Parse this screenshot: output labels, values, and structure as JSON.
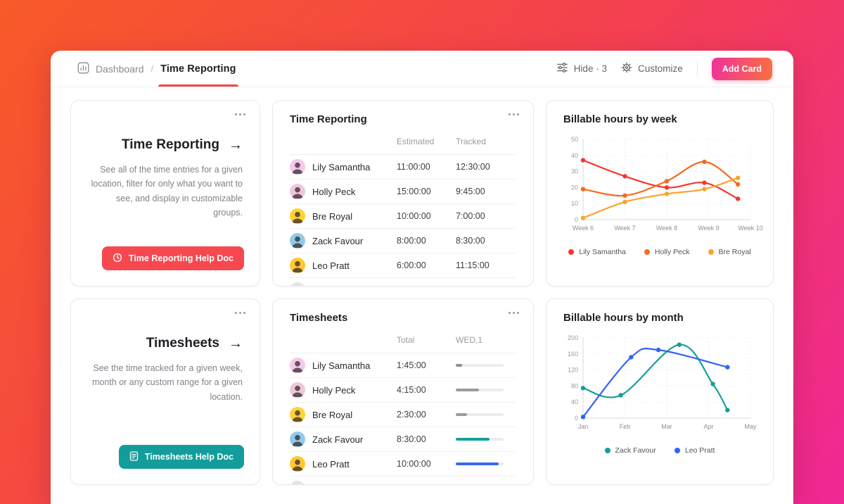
{
  "header": {
    "breadcrumb": {
      "root": "Dashboard",
      "separator": "/",
      "current": "Time Reporting"
    },
    "hide_label": "Hide · 3",
    "customize_label": "Customize",
    "add_card_label": "Add Card"
  },
  "info_cards": [
    {
      "title": "Time Reporting",
      "arrow": "→",
      "description": "See all of the time entries for a given location, filter for only what you want to see, and display in customizable groups.",
      "button_label": "Time Reporting Help Doc",
      "button_color": "#F7484F",
      "button_icon": "clock-icon"
    },
    {
      "title": "Timesheets",
      "arrow": "→",
      "description": "See the time tracked for a given week, month or any custom range for a given location.",
      "button_label": "Timesheets Help Doc",
      "button_color": "#129D9B",
      "button_icon": "document-icon"
    }
  ],
  "tables": [
    {
      "title": "Time Reporting",
      "columns": [
        "Estimated",
        "Tracked"
      ],
      "rows": [
        {
          "name": "Lily Samantha",
          "values": [
            "11:00:00",
            "12:30:00"
          ],
          "avatar_color": "#F4C9E9"
        },
        {
          "name": "Holly Peck",
          "values": [
            "15:00:00",
            "9:45:00"
          ],
          "avatar_color": "#EFC7DB"
        },
        {
          "name": "Bre Royal",
          "values": [
            "10:00:00",
            "7:00:00"
          ],
          "avatar_color": "#FFD335"
        },
        {
          "name": "Zack Favour",
          "values": [
            "8:00:00",
            "8:30:00"
          ],
          "avatar_color": "#90CBE9"
        },
        {
          "name": "Leo Pratt",
          "values": [
            "6:00:00",
            "11:15:00"
          ],
          "avatar_color": "#FFC833"
        }
      ],
      "partial_row": true
    },
    {
      "title": "Timesheets",
      "columns": [
        "Total",
        "WED,1"
      ],
      "rows": [
        {
          "name": "Lily Samantha",
          "values": [
            "1:45:00"
          ],
          "bar": {
            "pct": 13,
            "color": "#8E8E93"
          },
          "avatar_color": "#F4C9E9"
        },
        {
          "name": "Holly Peck",
          "values": [
            "4:15:00"
          ],
          "bar": {
            "pct": 48,
            "color": "#9A9AA0"
          },
          "avatar_color": "#EFC7DB"
        },
        {
          "name": "Bre Royal",
          "values": [
            "2:30:00"
          ],
          "bar": {
            "pct": 24,
            "color": "#9A9AA0"
          },
          "avatar_color": "#FFD335"
        },
        {
          "name": "Zack Favour",
          "values": [
            "8:30:00"
          ],
          "bar": {
            "pct": 71,
            "color": "#14A09D"
          },
          "avatar_color": "#90CBE9"
        },
        {
          "name": "Leo Pratt",
          "values": [
            "10:00:00"
          ],
          "bar": {
            "pct": 90,
            "color": "#3B66F0"
          },
          "avatar_color": "#FFC833"
        }
      ],
      "partial_row": true
    }
  ],
  "chart_data": [
    {
      "type": "line",
      "title": "Billable hours by week",
      "x_labels": [
        "Week 6",
        "Week 7",
        "Week 8",
        "Week 9",
        "Week 10"
      ],
      "ylim": [
        0,
        50
      ],
      "y_ticks": [
        0,
        10,
        20,
        30,
        40,
        50
      ],
      "grid": "dotted",
      "legend_position": "bottom",
      "series": [
        {
          "name": "Lily Samantha",
          "color": "#F5362F",
          "points": [
            [
              0,
              37
            ],
            [
              1,
              27
            ],
            [
              2,
              20
            ],
            [
              2.9,
              23
            ],
            [
              3.7,
              13
            ]
          ]
        },
        {
          "name": "Holly Peck",
          "color": "#F8691F",
          "points": [
            [
              0,
              19
            ],
            [
              1,
              15
            ],
            [
              2,
              24
            ],
            [
              2.9,
              36
            ],
            [
              3.7,
              22
            ]
          ]
        },
        {
          "name": "Bre Royal",
          "color": "#FBA32C",
          "points": [
            [
              0,
              1
            ],
            [
              1,
              11
            ],
            [
              2,
              16
            ],
            [
              2.9,
              19
            ],
            [
              3.7,
              26
            ]
          ]
        }
      ]
    },
    {
      "type": "line",
      "title": "Billable hours by month",
      "x_labels": [
        "Jan",
        "Feb",
        "Mar",
        "Apr",
        "May"
      ],
      "ylim": [
        0,
        200
      ],
      "y_ticks": [
        0,
        40,
        80,
        120,
        160,
        200
      ],
      "grid": "dotted",
      "legend_position": "bottom",
      "series": [
        {
          "name": "Zack Favour",
          "color": "#13A095",
          "points": [
            [
              0,
              75
            ],
            [
              0.9,
              57
            ],
            [
              2.3,
              183
            ],
            [
              3.1,
              85
            ],
            [
              3.45,
              20
            ]
          ]
        },
        {
          "name": "Leo Pratt",
          "color": "#2F63F4",
          "points": [
            [
              0,
              3
            ],
            [
              1.15,
              152
            ],
            [
              1.8,
              170
            ],
            [
              3.45,
              127
            ]
          ]
        }
      ]
    }
  ],
  "theme": {
    "background_gradient": [
      "#F85A28",
      "#F4414E",
      "#EF2795"
    ],
    "accent_red": "#F5453F",
    "add_card_gradient": [
      "#F0309B",
      "#F97140"
    ]
  }
}
